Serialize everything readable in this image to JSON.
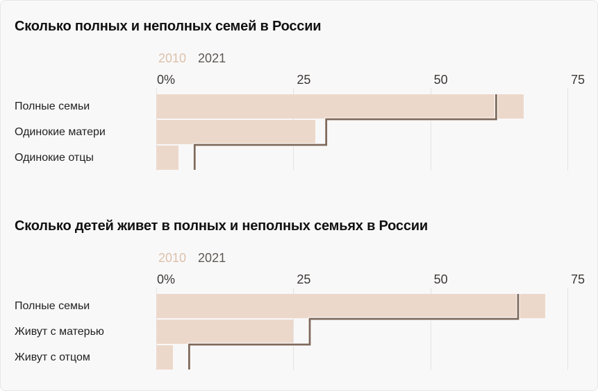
{
  "colors": {
    "background": "#f9f8f9",
    "bar_2010": "#ecd8ca",
    "line_2021": "#7e695b",
    "line_casing": "#fbfaf9",
    "gridline": "#e5e3e2",
    "title_text": "#111111",
    "category_text": "#1f1f1f",
    "axis_text": "#3b3835",
    "legend_2010_text": "#dcc1aa",
    "legend_2021_text": "#5c5854"
  },
  "chart_data": [
    {
      "type": "bar",
      "orientation": "horizontal",
      "title": "Сколько полных и неполных семей в России",
      "unit": "%",
      "categories": [
        "Полные семьи",
        "Одинокие матери",
        "Одинокие отцы"
      ],
      "series": [
        {
          "name": "2010",
          "style": "filled-bar",
          "values": [
            67,
            29,
            4
          ]
        },
        {
          "name": "2021",
          "style": "step-line",
          "values": [
            62,
            31,
            7
          ]
        }
      ],
      "x_axis": {
        "tick_labels": [
          "0%",
          "25",
          "50",
          "75"
        ],
        "tick_values": [
          0,
          25,
          50,
          75
        ],
        "range": [
          0,
          78
        ],
        "grid": true
      },
      "legend_position": "top"
    },
    {
      "type": "bar",
      "orientation": "horizontal",
      "title": "Сколько детей живет в полных и неполных семьях в России",
      "unit": "%",
      "categories": [
        "Полные семьи",
        "Живут с матерью",
        "Живут с отцом"
      ],
      "series": [
        {
          "name": "2010",
          "style": "filled-bar",
          "values": [
            71,
            25,
            3
          ]
        },
        {
          "name": "2021",
          "style": "step-line",
          "values": [
            66,
            28,
            6
          ]
        }
      ],
      "x_axis": {
        "tick_labels": [
          "0%",
          "25",
          "50",
          "75"
        ],
        "tick_values": [
          0,
          25,
          50,
          75
        ],
        "range": [
          0,
          78
        ],
        "grid": true
      },
      "legend_position": "top"
    }
  ]
}
